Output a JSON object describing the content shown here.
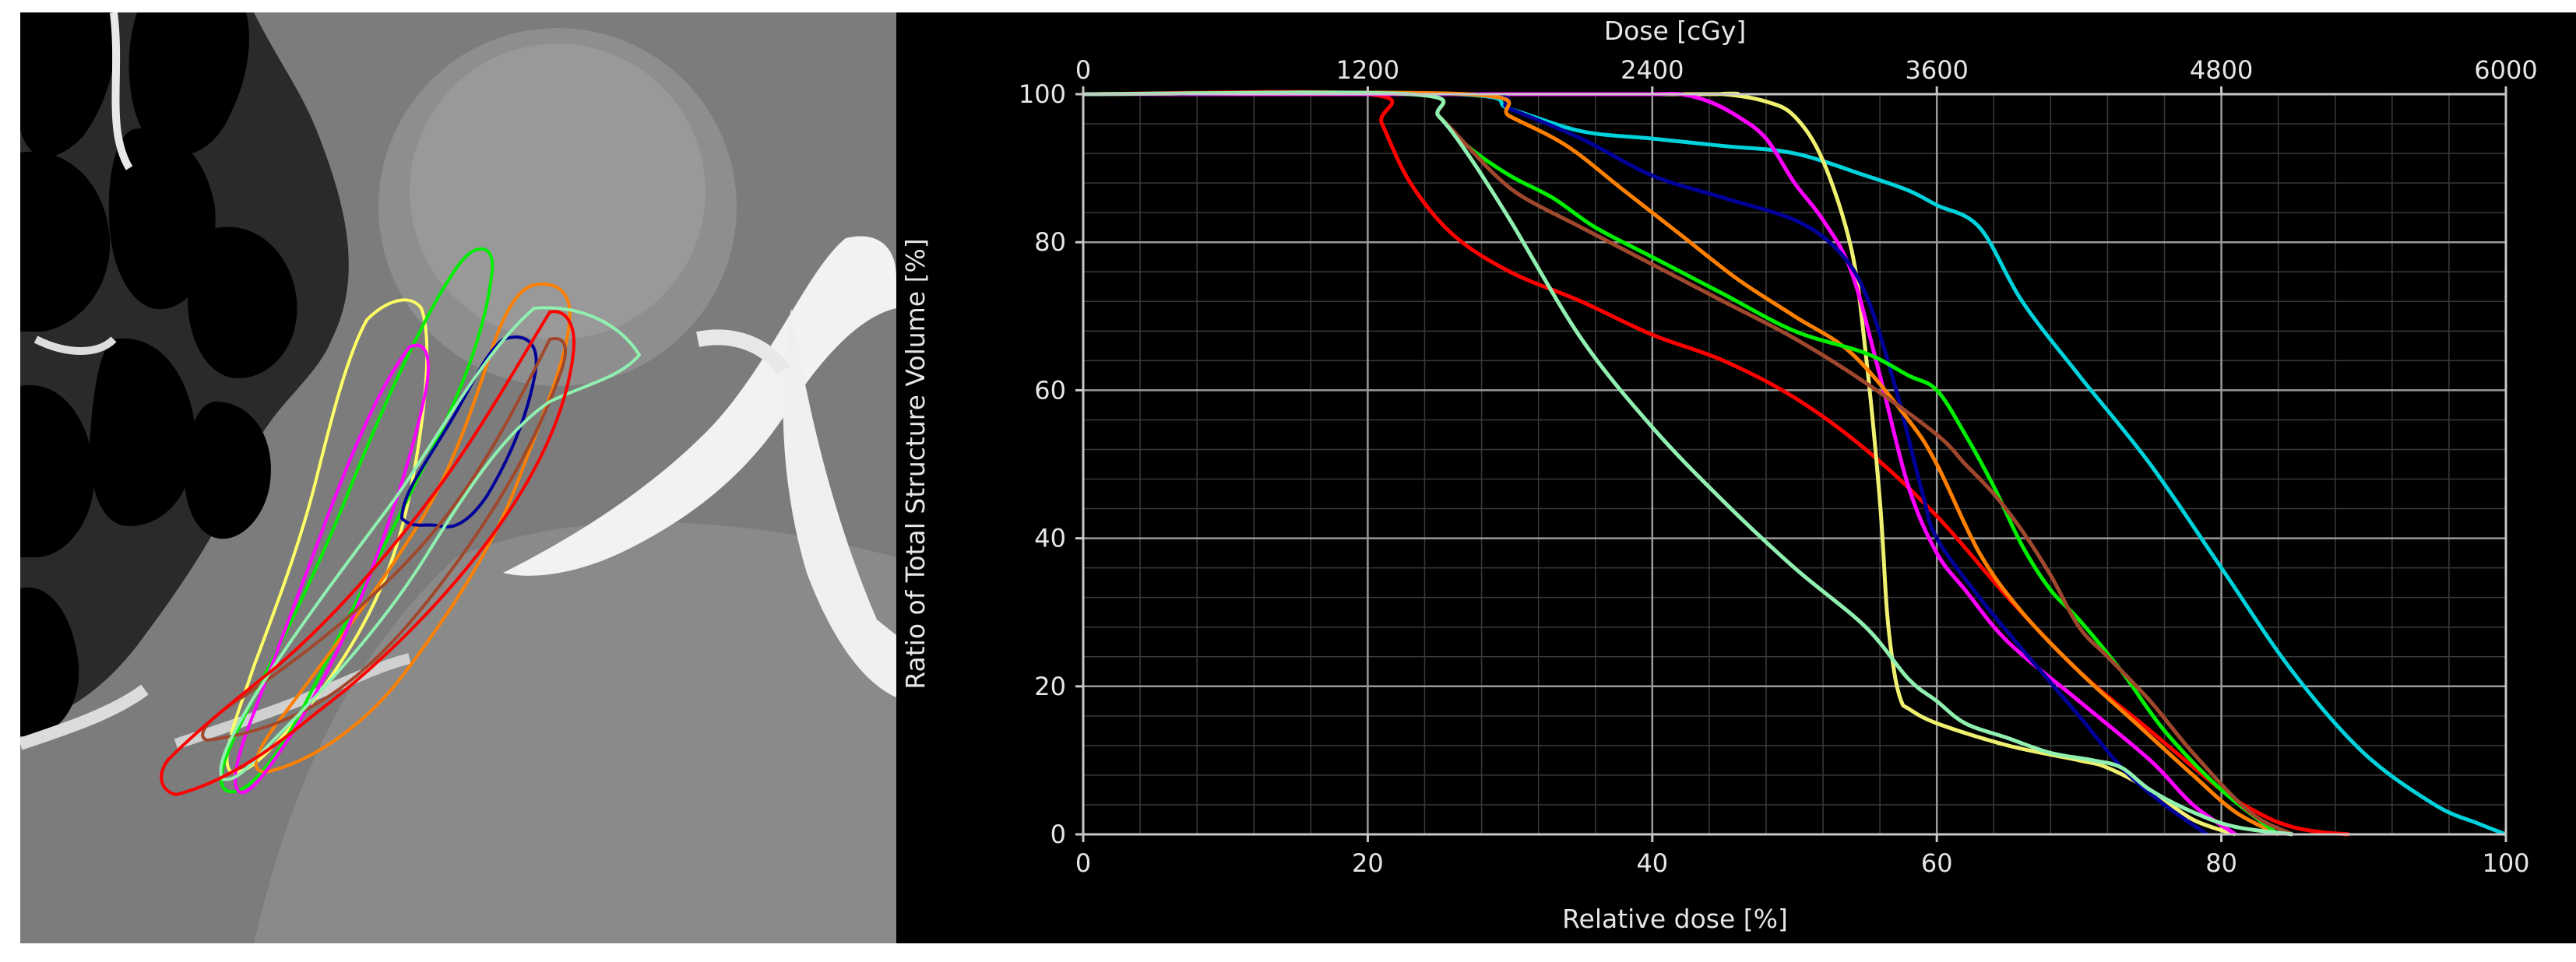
{
  "chart_data": {
    "type": "line",
    "xlabel": "Relative dose [%]",
    "x2label": "Dose [cGy]",
    "ylabel": "Ratio of Total Structure Volume [%]",
    "xlim": [
      0,
      100
    ],
    "x2lim": [
      0,
      6000
    ],
    "ylim": [
      0,
      100
    ],
    "x_ticks": [
      "0",
      "20",
      "40",
      "60",
      "80",
      "100"
    ],
    "x2_ticks": [
      "0",
      "1200",
      "2400",
      "3600",
      "4800",
      "6000"
    ],
    "y_ticks": [
      "0",
      "20",
      "40",
      "60",
      "80",
      "100"
    ],
    "grid": true,
    "legend": "none",
    "series": [
      {
        "color": "#ff0000",
        "x": [
          0,
          20,
          21,
          23,
          26,
          30,
          35,
          40,
          45,
          50,
          55,
          60,
          65,
          70,
          75,
          80,
          83,
          85,
          87,
          89
        ],
        "y": [
          100,
          100,
          96,
          88,
          81,
          76,
          72,
          67.5,
          64,
          59,
          52,
          43,
          32,
          22,
          14,
          6,
          2.5,
          1,
          0.3,
          0
        ]
      },
      {
        "color": "#00d2dc",
        "x": [
          0,
          26,
          30,
          35,
          40,
          45,
          50,
          55,
          58,
          60,
          63,
          66,
          70,
          75,
          80,
          85,
          90,
          95,
          98,
          100
        ],
        "y": [
          100,
          100,
          98,
          95,
          94,
          93,
          92,
          89,
          87,
          85,
          82,
          72,
          62,
          50,
          36,
          22,
          11,
          4,
          1.5,
          0
        ]
      },
      {
        "color": "#f0f070",
        "x": [
          0,
          42,
          45,
          48,
          50,
          52,
          54,
          55,
          56,
          56.5,
          57,
          57.5,
          58,
          60,
          65,
          70,
          72,
          75,
          78,
          81
        ],
        "y": [
          100,
          100,
          100,
          99,
          97,
          91,
          79,
          65,
          45,
          30,
          22,
          18,
          17,
          15,
          12,
          10,
          9,
          6,
          2,
          0
        ]
      },
      {
        "color": "#ff00ff",
        "x": [
          0,
          37,
          40,
          42,
          44,
          46,
          48,
          50,
          52,
          54,
          56,
          58,
          60,
          62,
          65,
          70,
          75,
          78,
          81
        ],
        "y": [
          100,
          100,
          100,
          100,
          99,
          97,
          94,
          88,
          83,
          76,
          62,
          47,
          38,
          33,
          26,
          18,
          10,
          4,
          0
        ]
      },
      {
        "color": "#000099",
        "x": [
          0,
          27,
          30,
          35,
          40,
          45,
          50,
          53,
          55,
          57,
          59,
          60,
          63,
          66,
          70,
          73,
          76,
          79
        ],
        "y": [
          100,
          100,
          98,
          94,
          89,
          86,
          83,
          79,
          73,
          61,
          46,
          40,
          32,
          25,
          16,
          9,
          4,
          0
        ]
      },
      {
        "color": "#ff8000",
        "x": [
          0,
          27,
          30,
          34,
          38,
          42,
          46,
          50,
          54,
          58,
          60,
          63,
          66,
          70,
          74,
          78,
          81,
          84
        ],
        "y": [
          100,
          100,
          97,
          93,
          87,
          81,
          75,
          70,
          65,
          56,
          50,
          38,
          30,
          22,
          15,
          8,
          3,
          0
        ]
      },
      {
        "color": "#00ee00",
        "x": [
          0,
          23,
          25,
          27,
          30,
          33,
          36,
          40,
          45,
          50,
          55,
          58,
          60,
          62,
          64,
          66,
          68,
          70,
          73,
          76,
          80,
          84
        ],
        "y": [
          100,
          100,
          97,
          93,
          89,
          86,
          82,
          78,
          73,
          68,
          65,
          62,
          60,
          54,
          47,
          39,
          33,
          29,
          22,
          14,
          6,
          0
        ]
      },
      {
        "color": "#a0482d",
        "x": [
          0,
          23,
          25,
          27,
          29,
          31,
          35,
          40,
          45,
          50,
          55,
          60,
          62,
          64,
          66,
          68,
          70,
          72,
          75,
          78,
          82,
          85
        ],
        "y": [
          100,
          100,
          97,
          93,
          89,
          86,
          82,
          77,
          72,
          67,
          61,
          54,
          50,
          46,
          41,
          35,
          28,
          24,
          18,
          11,
          3,
          0
        ]
      },
      {
        "color": "#90f0b0",
        "x": [
          0,
          23,
          25,
          27,
          30,
          35,
          40,
          45,
          50,
          55,
          58,
          60,
          62,
          65,
          68,
          71,
          73,
          75,
          78,
          81,
          85
        ],
        "y": [
          100,
          100,
          97,
          92,
          83,
          67,
          55,
          45,
          36,
          28,
          21,
          18,
          15,
          13,
          11,
          10,
          9,
          6,
          3,
          1,
          0
        ]
      }
    ]
  },
  "ct": {
    "contour_colors": [
      "#ffff66",
      "#00ee00",
      "#ff8000",
      "#ff00ff",
      "#000099",
      "#a0482d",
      "#90f0b0",
      "#ff0000"
    ]
  }
}
